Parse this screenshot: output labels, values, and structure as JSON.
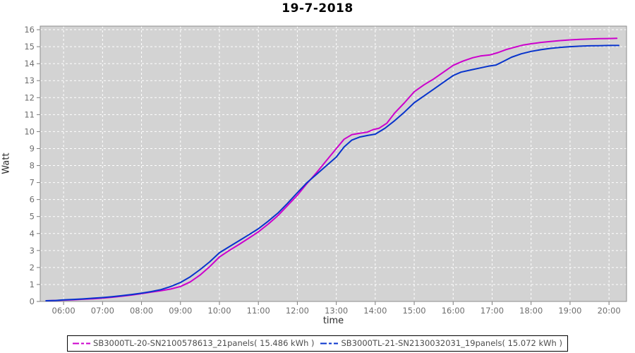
{
  "title": "19-7-2018",
  "axes": {
    "x_label": "time",
    "y_label": "Watt"
  },
  "legend": {
    "position": "bottom-center",
    "items": [
      {
        "label": "SB3000TL-20-SN2100578613_21panels( 15.486 kWh )",
        "color": "#CC00CC"
      },
      {
        "label": "SB3000TL-21-SN2130032031_19panels( 15.072 kWh )",
        "color": "#0733CC"
      }
    ]
  },
  "colors": {
    "plot_background": "#D3D3D3",
    "grid": "#FFFFFF",
    "plot_border": "#8C8C8C",
    "tick": "#7A7A7A",
    "tick_label": "#6E6E6E",
    "title": "#000000",
    "series_magenta": "#CC00CC",
    "series_blue": "#0733CC"
  },
  "chart_data": {
    "type": "line",
    "title": "19-7-2018",
    "xlabel": "time",
    "ylabel": "Watt",
    "x_unit": "hour_of_day",
    "xlim": [
      5.4,
      20.45
    ],
    "ylim": [
      0,
      16.21
    ],
    "grid": "white dashed on gray background",
    "legend_position": "bottom",
    "x_ticks": [
      {
        "hour": 6,
        "label": "06:00"
      },
      {
        "hour": 7,
        "label": "07:00"
      },
      {
        "hour": 8,
        "label": "08:00"
      },
      {
        "hour": 9,
        "label": "09:00"
      },
      {
        "hour": 10,
        "label": "10:00"
      },
      {
        "hour": 11,
        "label": "11:00"
      },
      {
        "hour": 12,
        "label": "12:00"
      },
      {
        "hour": 13,
        "label": "13:00"
      },
      {
        "hour": 14,
        "label": "14:00"
      },
      {
        "hour": 15,
        "label": "15:00"
      },
      {
        "hour": 16,
        "label": "16:00"
      },
      {
        "hour": 17,
        "label": "17:00"
      },
      {
        "hour": 18,
        "label": "18:00"
      },
      {
        "hour": 19,
        "label": "19:00"
      },
      {
        "hour": 20,
        "label": "20:00"
      }
    ],
    "y_ticks": [
      0,
      1,
      2,
      3,
      4,
      5,
      6,
      7,
      8,
      9,
      10,
      11,
      12,
      13,
      14,
      15,
      16
    ],
    "series": [
      {
        "name": "SB3000TL-20-SN2100578613_21panels",
        "total_kwh": 15.486,
        "color": "#CC00CC",
        "points": [
          [
            5.55,
            0.04
          ],
          [
            5.8,
            0.06
          ],
          [
            6.0,
            0.08
          ],
          [
            6.25,
            0.1
          ],
          [
            6.5,
            0.13
          ],
          [
            6.75,
            0.16
          ],
          [
            7.0,
            0.2
          ],
          [
            7.25,
            0.25
          ],
          [
            7.5,
            0.31
          ],
          [
            7.75,
            0.38
          ],
          [
            8.0,
            0.46
          ],
          [
            8.25,
            0.55
          ],
          [
            8.5,
            0.63
          ],
          [
            8.75,
            0.73
          ],
          [
            9.0,
            0.88
          ],
          [
            9.25,
            1.15
          ],
          [
            9.5,
            1.55
          ],
          [
            9.75,
            2.05
          ],
          [
            10.0,
            2.62
          ],
          [
            10.25,
            3.0
          ],
          [
            10.5,
            3.35
          ],
          [
            10.75,
            3.72
          ],
          [
            11.0,
            4.1
          ],
          [
            11.25,
            4.55
          ],
          [
            11.5,
            5.05
          ],
          [
            11.75,
            5.65
          ],
          [
            12.0,
            6.25
          ],
          [
            12.25,
            6.95
          ],
          [
            12.5,
            7.6
          ],
          [
            12.75,
            8.3
          ],
          [
            13.0,
            9.0
          ],
          [
            13.2,
            9.55
          ],
          [
            13.4,
            9.82
          ],
          [
            13.6,
            9.9
          ],
          [
            13.8,
            9.97
          ],
          [
            13.95,
            10.12
          ],
          [
            14.1,
            10.2
          ],
          [
            14.3,
            10.5
          ],
          [
            14.5,
            11.1
          ],
          [
            14.75,
            11.7
          ],
          [
            15.0,
            12.35
          ],
          [
            15.25,
            12.75
          ],
          [
            15.5,
            13.1
          ],
          [
            15.75,
            13.5
          ],
          [
            16.0,
            13.9
          ],
          [
            16.25,
            14.15
          ],
          [
            16.5,
            14.35
          ],
          [
            16.7,
            14.45
          ],
          [
            16.95,
            14.52
          ],
          [
            17.15,
            14.65
          ],
          [
            17.35,
            14.82
          ],
          [
            17.55,
            14.95
          ],
          [
            17.8,
            15.1
          ],
          [
            18.0,
            15.17
          ],
          [
            18.25,
            15.25
          ],
          [
            18.5,
            15.31
          ],
          [
            18.75,
            15.36
          ],
          [
            19.0,
            15.4
          ],
          [
            19.25,
            15.43
          ],
          [
            19.5,
            15.45
          ],
          [
            19.75,
            15.47
          ],
          [
            20.0,
            15.48
          ],
          [
            20.2,
            15.49
          ]
        ]
      },
      {
        "name": "SB3000TL-21-SN2130032031_19panels",
        "total_kwh": 15.072,
        "color": "#0733CC",
        "points": [
          [
            5.55,
            0.04
          ],
          [
            5.8,
            0.06
          ],
          [
            6.0,
            0.09
          ],
          [
            6.25,
            0.12
          ],
          [
            6.5,
            0.15
          ],
          [
            6.75,
            0.19
          ],
          [
            7.0,
            0.23
          ],
          [
            7.25,
            0.28
          ],
          [
            7.5,
            0.34
          ],
          [
            7.75,
            0.41
          ],
          [
            8.0,
            0.49
          ],
          [
            8.25,
            0.58
          ],
          [
            8.5,
            0.7
          ],
          [
            8.75,
            0.88
          ],
          [
            9.0,
            1.12
          ],
          [
            9.25,
            1.45
          ],
          [
            9.5,
            1.87
          ],
          [
            9.75,
            2.33
          ],
          [
            10.0,
            2.87
          ],
          [
            10.25,
            3.22
          ],
          [
            10.5,
            3.57
          ],
          [
            10.75,
            3.92
          ],
          [
            11.0,
            4.28
          ],
          [
            11.25,
            4.72
          ],
          [
            11.5,
            5.2
          ],
          [
            11.75,
            5.78
          ],
          [
            12.0,
            6.4
          ],
          [
            12.25,
            7.0
          ],
          [
            12.5,
            7.5
          ],
          [
            12.75,
            8.0
          ],
          [
            13.0,
            8.5
          ],
          [
            13.2,
            9.1
          ],
          [
            13.4,
            9.5
          ],
          [
            13.6,
            9.68
          ],
          [
            13.8,
            9.77
          ],
          [
            14.0,
            9.85
          ],
          [
            14.25,
            10.2
          ],
          [
            14.5,
            10.65
          ],
          [
            14.75,
            11.15
          ],
          [
            15.0,
            11.7
          ],
          [
            15.25,
            12.1
          ],
          [
            15.5,
            12.5
          ],
          [
            15.75,
            12.9
          ],
          [
            16.0,
            13.3
          ],
          [
            16.2,
            13.5
          ],
          [
            16.45,
            13.63
          ],
          [
            16.7,
            13.75
          ],
          [
            16.9,
            13.85
          ],
          [
            17.1,
            13.92
          ],
          [
            17.3,
            14.15
          ],
          [
            17.5,
            14.38
          ],
          [
            17.75,
            14.58
          ],
          [
            18.0,
            14.72
          ],
          [
            18.25,
            14.82
          ],
          [
            18.5,
            14.9
          ],
          [
            18.75,
            14.96
          ],
          [
            19.0,
            15.0
          ],
          [
            19.25,
            15.03
          ],
          [
            19.5,
            15.05
          ],
          [
            19.75,
            15.06
          ],
          [
            20.0,
            15.07
          ],
          [
            20.25,
            15.07
          ]
        ]
      }
    ]
  }
}
